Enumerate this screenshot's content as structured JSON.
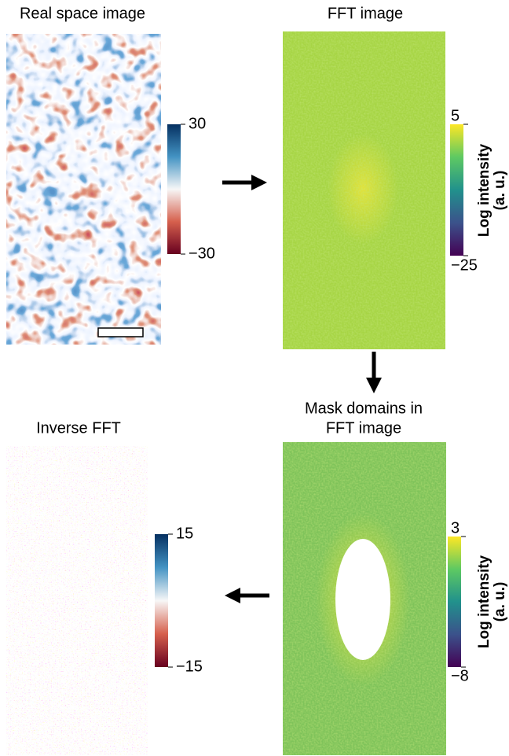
{
  "panels": [
    {
      "title": "Real space image",
      "colorbar": {
        "ticks": [
          "30",
          "−30"
        ]
      }
    },
    {
      "title": "FFT image",
      "colorbar": {
        "ticks": [
          "5",
          "−25"
        ],
        "label": [
          "Log intensity",
          "(a. u.)"
        ]
      }
    },
    {
      "title": [
        "Mask domains in",
        "FFT image"
      ],
      "colorbar": {
        "ticks": [
          "3",
          "−8"
        ],
        "label": [
          "Log intensity",
          "(a. u.)"
        ]
      }
    },
    {
      "title": "Inverse FFT",
      "colorbar": {
        "ticks": [
          "15",
          "−15"
        ]
      }
    }
  ]
}
